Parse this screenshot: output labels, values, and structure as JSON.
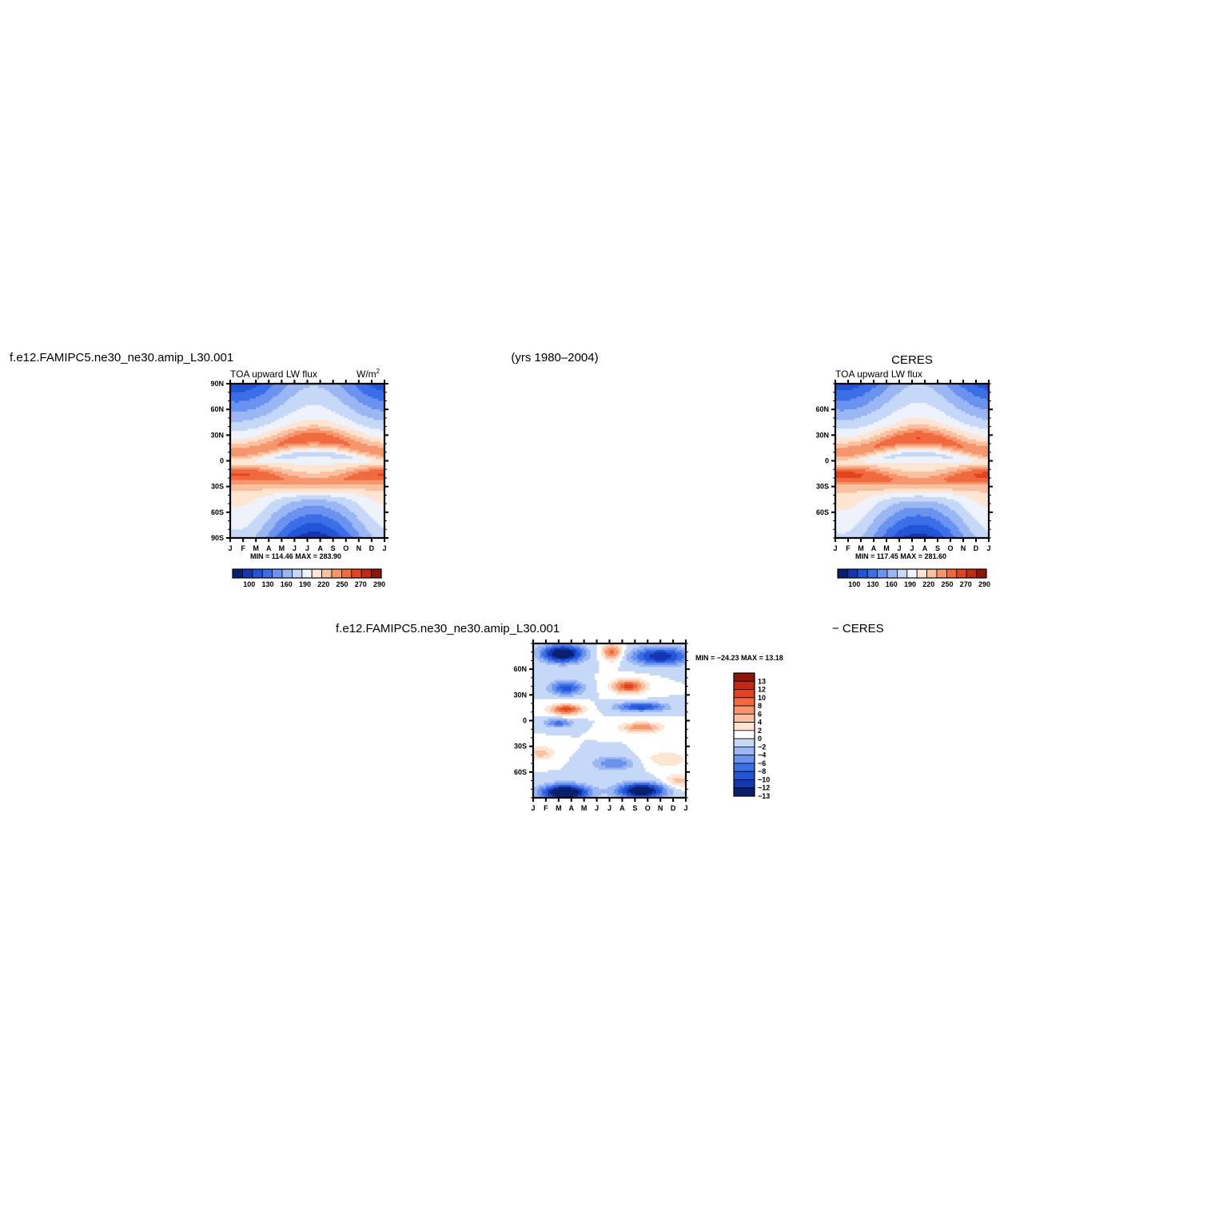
{
  "header": {
    "model_title": "f.e12.FAMIPC5.ne30_ne30.amip_L30.001",
    "years": "(yrs 1980–2004)",
    "obs_title": "CERES"
  },
  "diff_title": {
    "left": "f.e12.FAMIPC5.ne30_ne30.amip_L30.001",
    "right": "− CERES"
  },
  "chart_data": [
    {
      "id": "model",
      "type": "heatmap",
      "title": "f.e12.FAMIPC5.ne30_ne30.amip_L30.001",
      "variable_label": "TOA upward LW flux",
      "units_label": "W/m",
      "units_sup": "2",
      "x_ticks": [
        "J",
        "F",
        "M",
        "A",
        "M",
        "J",
        "J",
        "A",
        "S",
        "O",
        "N",
        "D",
        "J"
      ],
      "y_ticks": [
        "90N",
        "60N",
        "30N",
        "0",
        "30S",
        "60S",
        "90S"
      ],
      "xlim": [
        0,
        12
      ],
      "ylim": [
        -90,
        90
      ],
      "min_label": "MIN = 114.46 MAX = 283.90",
      "min": 114.46,
      "max": 283.9,
      "colorbar_labels": [
        "100",
        "130",
        "160",
        "190",
        "220",
        "250",
        "270",
        "290"
      ],
      "colorbar_colors": [
        "#0a1f6e",
        "#1436b0",
        "#2255d8",
        "#3b6fe8",
        "#6a93ef",
        "#9ab7f3",
        "#c6d8f7",
        "#eef2fb",
        "#fde5d1",
        "#f9c1a0",
        "#f5966c",
        "#f06a3e",
        "#e4431f",
        "#c22b12",
        "#8e1509"
      ]
    },
    {
      "id": "obs",
      "type": "heatmap",
      "title": "CERES",
      "variable_label": "TOA upward LW flux",
      "x_ticks": [
        "J",
        "F",
        "M",
        "A",
        "M",
        "J",
        "J",
        "A",
        "S",
        "O",
        "N",
        "D",
        "J"
      ],
      "y_ticks": [
        "60N",
        "30N",
        "0",
        "30S",
        "60S"
      ],
      "xlim": [
        0,
        12
      ],
      "ylim": [
        -90,
        90
      ],
      "min_label": "MIN = 117.45 MAX = 281.60",
      "min": 117.45,
      "max": 281.6,
      "colorbar_labels": [
        "100",
        "130",
        "160",
        "190",
        "220",
        "250",
        "270",
        "290"
      ],
      "colorbar_colors": [
        "#0a1f6e",
        "#1436b0",
        "#2255d8",
        "#3b6fe8",
        "#6a93ef",
        "#9ab7f3",
        "#c6d8f7",
        "#eef2fb",
        "#fde5d1",
        "#f9c1a0",
        "#f5966c",
        "#f06a3e",
        "#e4431f",
        "#c22b12",
        "#8e1509"
      ]
    },
    {
      "id": "diff",
      "type": "heatmap",
      "title": "f.e12.FAMIPC5.ne30_ne30.amip_L30.001 − CERES",
      "x_ticks": [
        "J",
        "F",
        "M",
        "A",
        "M",
        "J",
        "J",
        "A",
        "S",
        "O",
        "N",
        "D",
        "J"
      ],
      "y_ticks": [
        "60N",
        "30N",
        "0",
        "30S",
        "60S"
      ],
      "xlim": [
        0,
        12
      ],
      "ylim": [
        -90,
        90
      ],
      "min_label": "MIN = −24.23 MAX =  13.18",
      "min": -24.23,
      "max": 13.18,
      "colorbar_labels": [
        "13",
        "12",
        "10",
        "8",
        "6",
        "4",
        "2",
        "0",
        "−2",
        "−4",
        "−6",
        "−8",
        "−10",
        "−12",
        "−13"
      ],
      "colorbar_colors": [
        "#8e1509",
        "#c22b12",
        "#e4431f",
        "#f06a3e",
        "#f5966c",
        "#f9c1a0",
        "#fde5d1",
        "#ffffff",
        "#c6d8f7",
        "#9ab7f3",
        "#6a93ef",
        "#3b6fe8",
        "#2255d8",
        "#1436b0",
        "#0a1f6e"
      ]
    }
  ]
}
